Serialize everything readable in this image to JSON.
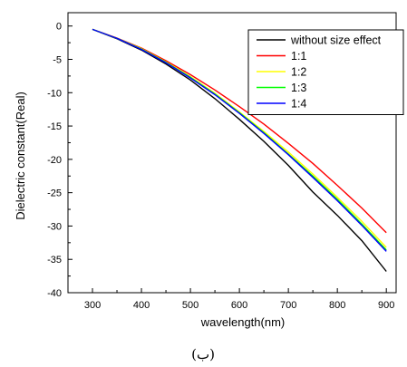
{
  "chart_data": {
    "type": "line",
    "xlabel": "wavelength(nm)",
    "ylabel": "Dielectric constant(Real)",
    "xlim": [
      250,
      920
    ],
    "ylim": [
      -40,
      2
    ],
    "xticks": [
      300,
      400,
      500,
      600,
      700,
      800,
      900
    ],
    "yticks": [
      0,
      -5,
      -10,
      -15,
      -20,
      -25,
      -30,
      -35,
      -40
    ],
    "legend_position": "top-right",
    "grid": false,
    "x": [
      300,
      350,
      400,
      450,
      500,
      550,
      600,
      650,
      700,
      750,
      800,
      850,
      900
    ],
    "series": [
      {
        "name": "without size effect",
        "color": "#000000",
        "values": [
          -0.5,
          -1.9,
          -3.6,
          -5.7,
          -8.1,
          -10.9,
          -14.0,
          -17.3,
          -20.9,
          -24.9,
          -28.4,
          -32.2,
          -36.8
        ]
      },
      {
        "name": "1:1",
        "color": "#ff0000",
        "values": [
          -0.5,
          -1.8,
          -3.3,
          -5.2,
          -7.3,
          -9.6,
          -12.1,
          -14.7,
          -17.6,
          -20.6,
          -23.9,
          -27.3,
          -31.0
        ]
      },
      {
        "name": "1:2",
        "color": "#ffff00",
        "values": [
          -0.5,
          -1.85,
          -3.4,
          -5.4,
          -7.6,
          -10.1,
          -12.9,
          -15.8,
          -18.9,
          -22.2,
          -25.7,
          -29.3,
          -33.2
        ]
      },
      {
        "name": "1:3",
        "color": "#00ff00",
        "values": [
          -0.5,
          -1.85,
          -3.45,
          -5.45,
          -7.7,
          -10.2,
          -13.0,
          -16.0,
          -19.2,
          -22.5,
          -26.0,
          -29.7,
          -33.6
        ]
      },
      {
        "name": "1:4",
        "color": "#0000ff",
        "values": [
          -0.5,
          -1.85,
          -3.5,
          -5.5,
          -7.8,
          -10.3,
          -13.1,
          -16.1,
          -19.3,
          -22.7,
          -26.2,
          -29.9,
          -33.8
        ]
      }
    ]
  },
  "caption": "(ب)"
}
